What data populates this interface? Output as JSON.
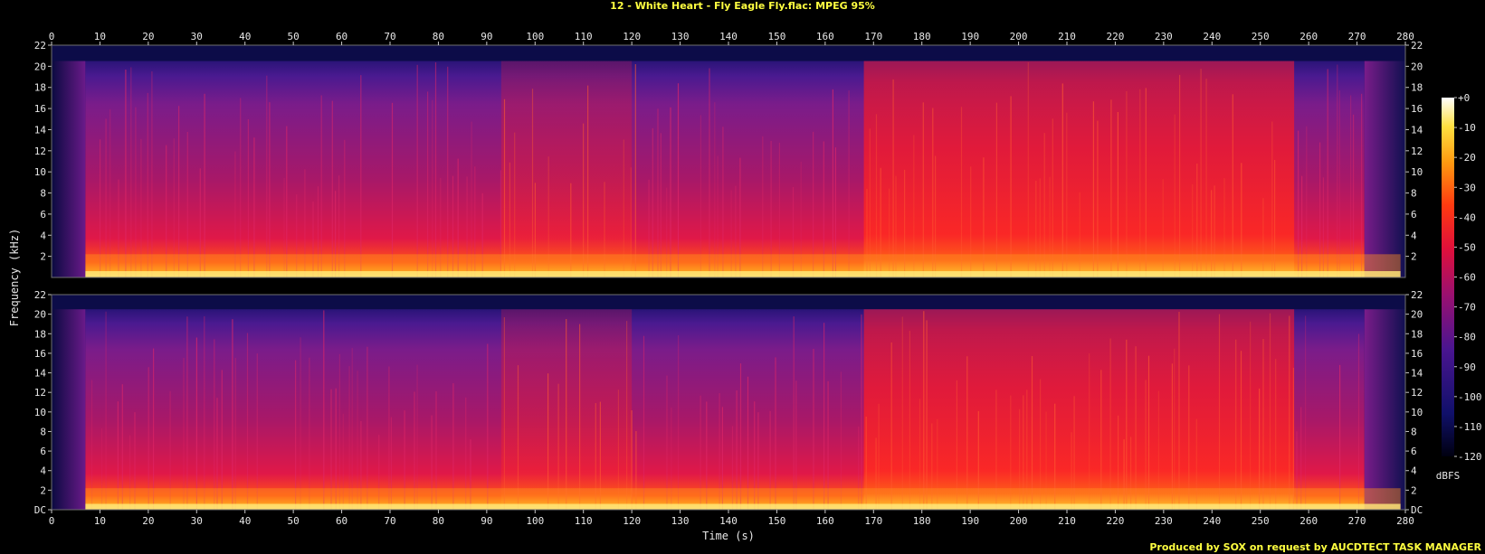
{
  "title": "12 - White Heart - Fly Eagle Fly.flac: MPEG 95%",
  "footer": "Produced by SOX on request by AUCDTECT TASK MANAGER",
  "chart_data": {
    "type": "heatmap",
    "title": "12 - White Heart - Fly Eagle Fly.flac: MPEG 95%",
    "xlabel": "Time (s)",
    "ylabel": "Frequency (kHz)",
    "xlim": [
      0,
      280
    ],
    "x_ticks": [
      "0",
      "10",
      "20",
      "30",
      "40",
      "50",
      "60",
      "70",
      "80",
      "90",
      "100",
      "110",
      "120",
      "130",
      "140",
      "150",
      "160",
      "170",
      "180",
      "190",
      "200",
      "210",
      "220",
      "230",
      "240",
      "250",
      "260",
      "270",
      "280"
    ],
    "channels": [
      {
        "ylim": [
          0,
          22
        ],
        "y_ticks": [
          "22",
          "20",
          "18",
          "16",
          "14",
          "12",
          "10",
          "8",
          "6",
          "4",
          "2"
        ],
        "y_tick_values": [
          22,
          20,
          18,
          16,
          14,
          12,
          10,
          8,
          6,
          4,
          2
        ]
      },
      {
        "ylim": [
          0,
          22
        ],
        "y_ticks": [
          "22",
          "20",
          "18",
          "16",
          "14",
          "12",
          "10",
          "8",
          "6",
          "4",
          "2",
          "DC"
        ],
        "y_tick_values": [
          22,
          20,
          18,
          16,
          14,
          12,
          10,
          8,
          6,
          4,
          2,
          0
        ]
      }
    ],
    "frequency_cutoff_khz": 20.5,
    "audio_start_s": 7,
    "audio_end_s": 279,
    "colorbar": {
      "label": "dBFS",
      "ticks": [
        "+0",
        "-10",
        "-20",
        "-30",
        "-40",
        "-50",
        "-60",
        "-70",
        "-80",
        "-90",
        "-100",
        "-110",
        "-120"
      ],
      "tick_values": [
        0,
        -10,
        -20,
        -30,
        -40,
        -50,
        -60,
        -70,
        -80,
        -90,
        -100,
        -110,
        -120
      ],
      "range": [
        -120,
        0
      ]
    }
  }
}
